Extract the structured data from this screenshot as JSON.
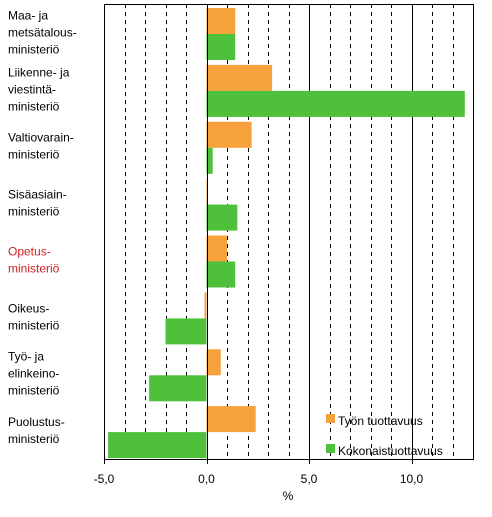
{
  "chart_data": {
    "type": "bar",
    "orientation": "horizontal",
    "categories": [
      {
        "lines": [
          "Maa- ja",
          "metsätalous-",
          "ministeriö"
        ],
        "highlight": false
      },
      {
        "lines": [
          "Liikenne- ja",
          "viestintä-",
          "ministeriö"
        ],
        "highlight": false
      },
      {
        "lines": [
          "Valtiovarain-",
          "ministeriö"
        ],
        "highlight": false
      },
      {
        "lines": [
          "Sisäasiain-",
          "ministeriö"
        ],
        "highlight": false
      },
      {
        "lines": [
          "Opetus-",
          "ministeriö"
        ],
        "highlight": true
      },
      {
        "lines": [
          "Oikeus-",
          "ministeriö"
        ],
        "highlight": false
      },
      {
        "lines": [
          "Työ- ja",
          "elinkeino-",
          "ministeriö"
        ],
        "highlight": false
      },
      {
        "lines": [
          "Puolustus-",
          "ministeriö"
        ],
        "highlight": false
      }
    ],
    "series": [
      {
        "name": "Työn tuottavuus",
        "color": "#f7a13a",
        "values": [
          1.4,
          3.2,
          2.2,
          0.0,
          1.0,
          -0.1,
          0.7,
          2.4
        ]
      },
      {
        "name": "Kokonaistuottavuus",
        "color": "#4fc03c",
        "values": [
          1.4,
          12.6,
          0.3,
          1.5,
          1.4,
          -2.0,
          -2.8,
          -4.8
        ]
      }
    ],
    "xlabel": "%",
    "xlim": [
      -5,
      13
    ],
    "xticks": [
      "-5,0",
      "0,0",
      "5,0",
      "10,0"
    ],
    "highlight_color": "#d42020",
    "grid": "vertical dashed every 1 unit, solid at 5 and 10",
    "legend_position": "bottom-right"
  }
}
